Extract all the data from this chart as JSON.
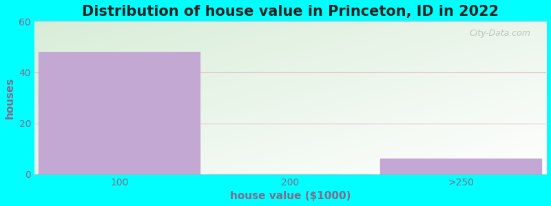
{
  "title": "Distribution of house value in Princeton, ID in 2022",
  "xlabel": "house value ($1000)",
  "ylabel": "houses",
  "categories": [
    "100",
    "200",
    ">250"
  ],
  "values": [
    48,
    0,
    6
  ],
  "bar_color": "#c4a8d4",
  "ylim": [
    0,
    60
  ],
  "yticks": [
    0,
    20,
    40,
    60
  ],
  "background_color": "#00FFFF",
  "gradient_top_left": "#d8edd8",
  "gradient_bottom_right": "#ffffff",
  "grid_color": "#e8c8d0",
  "title_fontsize": 15,
  "axis_label_fontsize": 11,
  "tick_fontsize": 10,
  "tick_color": "#886688",
  "label_color": "#886688",
  "title_color": "#222222",
  "watermark": "City-Data.com",
  "bar_width": 0.95
}
